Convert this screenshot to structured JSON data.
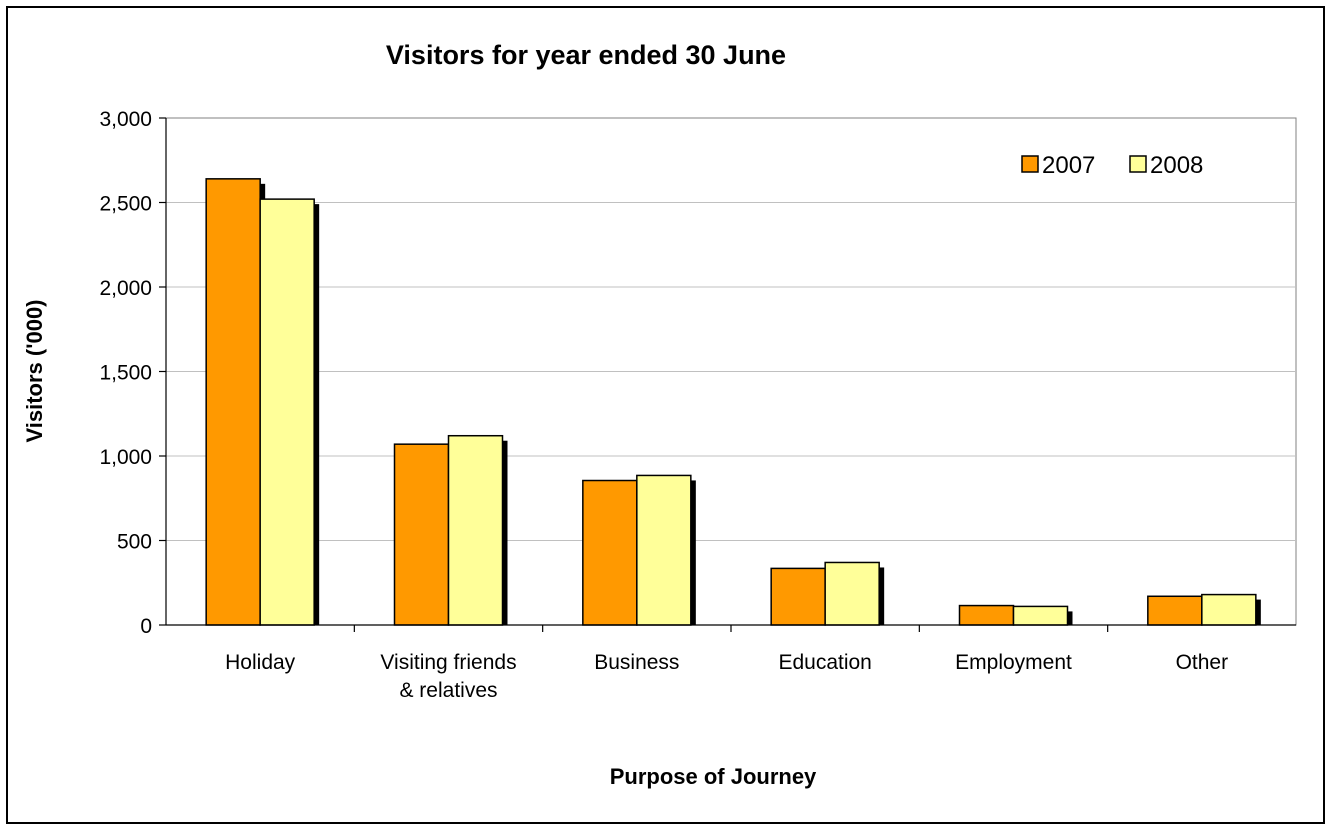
{
  "chart_data": {
    "type": "bar",
    "title": "Visitors for year ended 30 June",
    "xlabel": "Purpose of Journey",
    "ylabel": "Visitors ('000)",
    "categories": [
      [
        "Holiday"
      ],
      [
        "Visiting friends",
        "& relatives"
      ],
      [
        "Business"
      ],
      [
        "Education"
      ],
      [
        "Employment"
      ],
      [
        "Other"
      ]
    ],
    "series": [
      {
        "name": "2007",
        "color": "#FF9900",
        "values": [
          2640,
          1070,
          855,
          335,
          115,
          170
        ]
      },
      {
        "name": "2008",
        "color": "#FFFF99",
        "values": [
          2520,
          1120,
          885,
          370,
          110,
          180
        ]
      }
    ],
    "ylim": [
      0,
      3000
    ],
    "yticks": [
      0,
      500,
      1000,
      1500,
      2000,
      2500,
      3000
    ],
    "ytick_labels": [
      "0",
      "500",
      "1,000",
      "1,500",
      "2,000",
      "2,500",
      "3,000"
    ],
    "grid": true,
    "legend_position": "top-right"
  }
}
